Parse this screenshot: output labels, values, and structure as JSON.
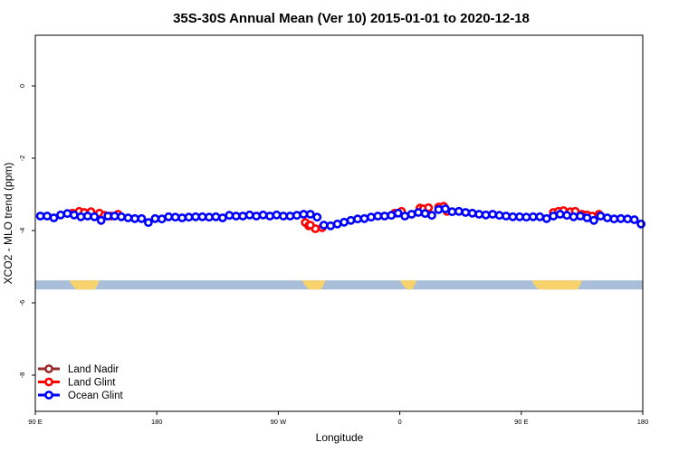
{
  "chart_data": {
    "type": "scatter",
    "title": "35S-30S Annual Mean (Ver 10)   2015-01-01 to 2020-12-18",
    "xlabel": "Longitude",
    "ylabel": "XCO2 - MLO trend (ppm)",
    "xlim": [
      90,
      450
    ],
    "ylim": [
      -9.0,
      1.4
    ],
    "x_ticks": [
      {
        "value": 90,
        "label": "90 E"
      },
      {
        "value": 162,
        "label": "180"
      },
      {
        "value": 234,
        "label": "90 W"
      },
      {
        "value": 306,
        "label": "0"
      },
      {
        "value": 378,
        "label": "90 E"
      },
      {
        "value": 450,
        "label": "180"
      }
    ],
    "y_ticks": [
      {
        "value": 0,
        "label": "0"
      },
      {
        "value": -2,
        "label": "-2"
      },
      {
        "value": -4,
        "label": "-4"
      },
      {
        "value": -6,
        "label": "-6"
      },
      {
        "value": -8,
        "label": "-8"
      }
    ],
    "series": [
      {
        "name": "Land Nadir",
        "color": "#9a2a2a",
        "x": [],
        "y": []
      },
      {
        "name": "Land Glint",
        "color": "#ff0000",
        "x": [
          112,
          116,
          119,
          123,
          128,
          131,
          135,
          139,
          250,
          252,
          256,
          260,
          253,
          303,
          307,
          318,
          320,
          323,
          329,
          332,
          334,
          397,
          400,
          403,
          407,
          410,
          414,
          417,
          420,
          424
        ],
        "y": [
          -3.52,
          -3.47,
          -3.5,
          -3.48,
          -3.52,
          -3.58,
          -3.6,
          -3.55,
          -3.78,
          -3.87,
          -3.95,
          -3.92,
          -3.85,
          -3.52,
          -3.47,
          -3.38,
          -3.4,
          -3.37,
          -3.35,
          -3.33,
          -3.47,
          -3.5,
          -3.47,
          -3.45,
          -3.48,
          -3.47,
          -3.55,
          -3.57,
          -3.6,
          -3.55
        ]
      },
      {
        "name": "Ocean Glint",
        "color": "#0000ff",
        "x": [
          93,
          97,
          101,
          105,
          109,
          113,
          117,
          121,
          125,
          129,
          133,
          137,
          141,
          145,
          149,
          153,
          157,
          161,
          165,
          169,
          173,
          177,
          181,
          185,
          189,
          193,
          197,
          201,
          205,
          209,
          213,
          217,
          221,
          225,
          229,
          233,
          237,
          241,
          245,
          249,
          253,
          257,
          261,
          265,
          269,
          273,
          277,
          281,
          285,
          289,
          293,
          297,
          301,
          305,
          309,
          313,
          317,
          321,
          325,
          329,
          333,
          337,
          341,
          345,
          349,
          353,
          357,
          361,
          365,
          369,
          373,
          377,
          381,
          385,
          389,
          393,
          397,
          401,
          405,
          409,
          413,
          417,
          421,
          425,
          429,
          433,
          437,
          441,
          445,
          449
        ],
        "y": [
          -3.6,
          -3.6,
          -3.65,
          -3.57,
          -3.53,
          -3.57,
          -3.62,
          -3.6,
          -3.62,
          -3.72,
          -3.6,
          -3.6,
          -3.62,
          -3.65,
          -3.67,
          -3.67,
          -3.78,
          -3.67,
          -3.68,
          -3.62,
          -3.63,
          -3.65,
          -3.63,
          -3.62,
          -3.62,
          -3.63,
          -3.62,
          -3.65,
          -3.58,
          -3.6,
          -3.6,
          -3.57,
          -3.6,
          -3.57,
          -3.6,
          -3.57,
          -3.6,
          -3.6,
          -3.58,
          -3.55,
          -3.55,
          -3.63,
          -3.85,
          -3.87,
          -3.82,
          -3.77,
          -3.72,
          -3.68,
          -3.67,
          -3.63,
          -3.6,
          -3.6,
          -3.58,
          -3.52,
          -3.6,
          -3.55,
          -3.5,
          -3.53,
          -3.58,
          -3.42,
          -3.4,
          -3.48,
          -3.47,
          -3.5,
          -3.52,
          -3.55,
          -3.57,
          -3.55,
          -3.58,
          -3.6,
          -3.62,
          -3.62,
          -3.63,
          -3.62,
          -3.62,
          -3.67,
          -3.6,
          -3.55,
          -3.58,
          -3.62,
          -3.6,
          -3.65,
          -3.72,
          -3.6,
          -3.65,
          -3.68,
          -3.67,
          -3.68,
          -3.7,
          -3.82
        ]
      }
    ],
    "legend": {
      "position": "bottom-left",
      "entries": [
        "Land Nadir",
        "Land Glint",
        "Ocean Glint"
      ]
    },
    "land_map_strip": {
      "y_range": [
        -5.38,
        -5.63
      ],
      "ocean_color": "#a9bed9",
      "land_color": "#f8d26b",
      "land_segments": [
        [
          110,
          128
        ],
        [
          248,
          262
        ],
        [
          306,
          316
        ],
        [
          384,
          414
        ]
      ]
    }
  }
}
